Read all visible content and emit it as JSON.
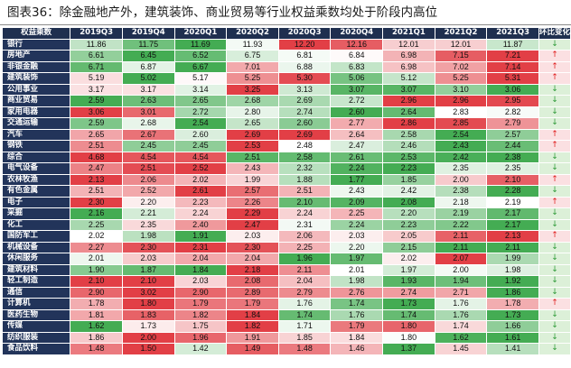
{
  "title": "图表36：除金融地产外，建筑装饰、商业贸易等行业权益乘数均处于阶段内高位",
  "table": {
    "header": [
      "权益乘数",
      "2019Q3",
      "2019Q4",
      "2020Q1",
      "2020Q2",
      "2020Q3",
      "2020Q4",
      "2021Q1",
      "2021Q2",
      "2021Q3",
      "环比变化"
    ],
    "rows": [
      {
        "name": "银行",
        "values": [
          "11.86",
          "11.75",
          "11.69",
          "11.93",
          "12.20",
          "12.16",
          "12.01",
          "12.01",
          "11.87"
        ],
        "trend": "↓"
      },
      {
        "name": "房地产",
        "values": [
          "6.61",
          "6.45",
          "6.52",
          "6.75",
          "6.81",
          "6.84",
          "6.98",
          "7.15",
          "7.21"
        ],
        "trend": "↑"
      },
      {
        "name": "非银金融",
        "values": [
          "6.71",
          "6.87",
          "6.67",
          "7.01",
          "6.88",
          "6.83",
          "6.98",
          "7.02",
          "7.14"
        ],
        "trend": "↑"
      },
      {
        "name": "建筑装饰",
        "values": [
          "5.19",
          "5.02",
          "5.17",
          "5.25",
          "5.30",
          "5.06",
          "5.12",
          "5.25",
          "5.31"
        ],
        "trend": "↑"
      },
      {
        "name": "公用事业",
        "values": [
          "3.17",
          "3.17",
          "3.14",
          "3.25",
          "3.13",
          "3.07",
          "3.07",
          "3.10",
          "3.06"
        ],
        "trend": "↓"
      },
      {
        "name": "商业贸易",
        "values": [
          "2.59",
          "2.63",
          "2.65",
          "2.68",
          "2.69",
          "2.72",
          "2.96",
          "2.96",
          "2.95"
        ],
        "trend": "↓"
      },
      {
        "name": "家用电器",
        "values": [
          "3.06",
          "3.01",
          "2.72",
          "2.80",
          "2.74",
          "2.60",
          "2.64",
          "2.83",
          "2.82"
        ],
        "trend": "↓"
      },
      {
        "name": "交通运输",
        "values": [
          "2.59",
          "2.68",
          "2.54",
          "2.65",
          "2.60",
          "2.77",
          "2.86",
          "2.85",
          "2.79"
        ],
        "trend": "↓"
      },
      {
        "name": "汽车",
        "values": [
          "2.65",
          "2.67",
          "2.60",
          "2.69",
          "2.69",
          "2.64",
          "2.58",
          "2.54",
          "2.57"
        ],
        "trend": "↑"
      },
      {
        "name": "钢铁",
        "values": [
          "2.51",
          "2.45",
          "2.45",
          "2.53",
          "2.48",
          "2.47",
          "2.46",
          "2.43",
          "2.44"
        ],
        "trend": "↑"
      },
      {
        "name": "综合",
        "values": [
          "4.68",
          "4.54",
          "4.54",
          "2.51",
          "2.58",
          "2.61",
          "2.53",
          "2.42",
          "2.38"
        ],
        "trend": "↓"
      },
      {
        "name": "电气设备",
        "values": [
          "2.47",
          "2.51",
          "2.52",
          "2.43",
          "2.32",
          "2.24",
          "2.23",
          "2.35",
          "2.35"
        ],
        "trend": "↓"
      },
      {
        "name": "农林牧渔",
        "values": [
          "2.13",
          "2.06",
          "2.02",
          "1.99",
          "1.88",
          "1.77",
          "1.85",
          "2.00",
          "2.10"
        ],
        "trend": "↑"
      },
      {
        "name": "有色金属",
        "values": [
          "2.51",
          "2.52",
          "2.61",
          "2.57",
          "2.51",
          "2.43",
          "2.42",
          "2.38",
          "2.28"
        ],
        "trend": "↓"
      },
      {
        "name": "电子",
        "values": [
          "2.30",
          "2.20",
          "2.23",
          "2.26",
          "2.10",
          "2.09",
          "2.08",
          "2.18",
          "2.19"
        ],
        "trend": "↑"
      },
      {
        "name": "采掘",
        "values": [
          "2.16",
          "2.21",
          "2.24",
          "2.29",
          "2.24",
          "2.25",
          "2.20",
          "2.19",
          "2.17"
        ],
        "trend": "↓"
      },
      {
        "name": "化工",
        "values": [
          "2.25",
          "2.35",
          "2.40",
          "2.47",
          "2.31",
          "2.24",
          "2.23",
          "2.22",
          "2.17"
        ],
        "trend": "↓"
      },
      {
        "name": "国防军工",
        "values": [
          "2.02",
          "1.98",
          "1.91",
          "2.03",
          "2.06",
          "2.03",
          "2.05",
          "2.11",
          "2.13"
        ],
        "trend": "↑"
      },
      {
        "name": "机械设备",
        "values": [
          "2.27",
          "2.30",
          "2.31",
          "2.30",
          "2.25",
          "2.20",
          "2.15",
          "2.11",
          "2.11"
        ],
        "trend": "↓"
      },
      {
        "name": "休闲服务",
        "values": [
          "2.01",
          "2.03",
          "2.04",
          "2.04",
          "1.96",
          "1.97",
          "2.02",
          "2.07",
          "1.99"
        ],
        "trend": "↓"
      },
      {
        "name": "建筑材料",
        "values": [
          "1.90",
          "1.87",
          "1.84",
          "2.18",
          "2.11",
          "2.01",
          "1.97",
          "2.00",
          "1.98"
        ],
        "trend": "↓"
      },
      {
        "name": "轻工制造",
        "values": [
          "2.10",
          "2.10",
          "2.03",
          "2.08",
          "2.04",
          "1.98",
          "1.93",
          "1.94",
          "1.92"
        ],
        "trend": "↓"
      },
      {
        "name": "通信",
        "values": [
          "2.90",
          "3.02",
          "2.90",
          "2.89",
          "2.79",
          "2.76",
          "2.74",
          "2.71",
          "1.86"
        ],
        "trend": "↓"
      },
      {
        "name": "计算机",
        "values": [
          "1.78",
          "1.80",
          "1.79",
          "1.79",
          "1.76",
          "1.74",
          "1.73",
          "1.76",
          "1.78"
        ],
        "trend": "↑"
      },
      {
        "name": "医药生物",
        "values": [
          "1.81",
          "1.83",
          "1.82",
          "1.84",
          "1.74",
          "1.76",
          "1.74",
          "1.76",
          "1.73"
        ],
        "trend": "↓"
      },
      {
        "name": "传媒",
        "values": [
          "1.62",
          "1.73",
          "1.75",
          "1.82",
          "1.71",
          "1.79",
          "1.80",
          "1.74",
          "1.66"
        ],
        "trend": "↓"
      },
      {
        "name": "纺织服装",
        "values": [
          "1.86",
          "2.00",
          "1.96",
          "1.91",
          "1.85",
          "1.84",
          "1.80",
          "1.62",
          "1.61"
        ],
        "trend": "↓"
      },
      {
        "name": "食品饮料",
        "values": [
          "1.48",
          "1.50",
          "1.42",
          "1.49",
          "1.48",
          "1.46",
          "1.37",
          "1.45",
          "1.41"
        ],
        "trend": "↓"
      }
    ]
  },
  "colors": {
    "header_bg": "#1f2f4f",
    "name_bg": "#22345a",
    "high": "#e0353c",
    "low": "#3aa84a",
    "mid": "#ffffff",
    "up_arrow": "#e02020",
    "down_arrow": "#2e9a38",
    "trend_up_bg": "#fbe0e2",
    "trend_down_bg": "#dcf0d8"
  }
}
